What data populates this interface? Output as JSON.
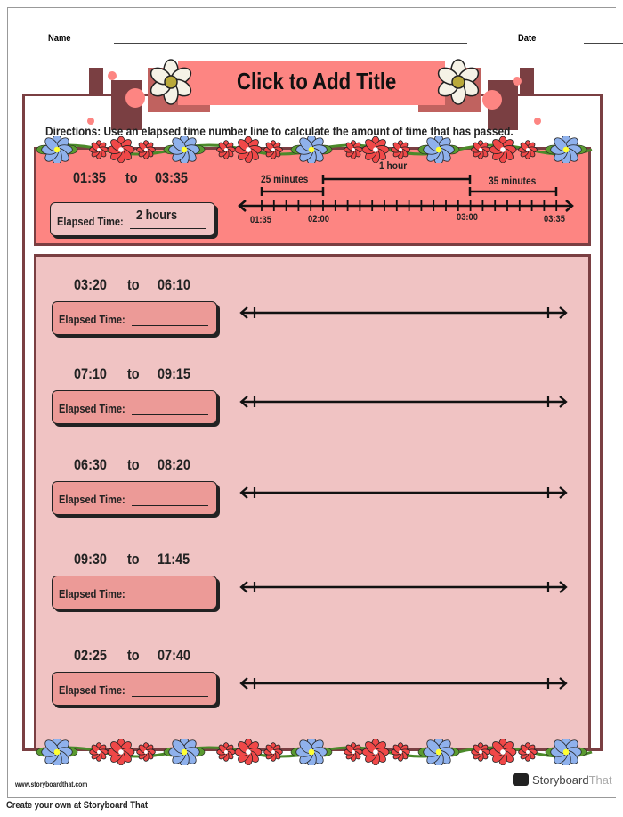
{
  "header": {
    "name_label": "Name",
    "date_label": "Date",
    "title": "Click to Add Title"
  },
  "directions": "Directions: Use an elapsed time number line to calculate the amount of time that has passed.",
  "example": {
    "start": "01:35",
    "to": "to",
    "end": "03:35",
    "elapsed_label": "Elapsed Time:",
    "answer": "2 hours",
    "segments": [
      "25 minutes",
      "1 hour",
      "35 minutes"
    ],
    "tick_labels": [
      "01:35",
      "02:00",
      "03:00",
      "03:35"
    ]
  },
  "problems": [
    {
      "start": "03:20",
      "to": "to",
      "end": "06:10",
      "elapsed_label": "Elapsed Time:"
    },
    {
      "start": "07:10",
      "to": "to",
      "end": "09:15",
      "elapsed_label": "Elapsed Time:"
    },
    {
      "start": "06:30",
      "to": "to",
      "end": "08:20",
      "elapsed_label": "Elapsed Time:"
    },
    {
      "start": "09:30",
      "to": "to",
      "end": "11:45",
      "elapsed_label": "Elapsed Time:"
    },
    {
      "start": "02:25",
      "to": "to",
      "end": "07:40",
      "elapsed_label": "Elapsed Time:"
    }
  ],
  "footer": {
    "url": "www.storyboardthat.com",
    "brand": "Storyboard",
    "brand2": "That",
    "caption": "Create your own at Storyboard That"
  },
  "colors": {
    "coral": "#fd8582",
    "pink": "#f0c3c3",
    "brown": "#7a3f42",
    "box": "#ec9a97"
  }
}
